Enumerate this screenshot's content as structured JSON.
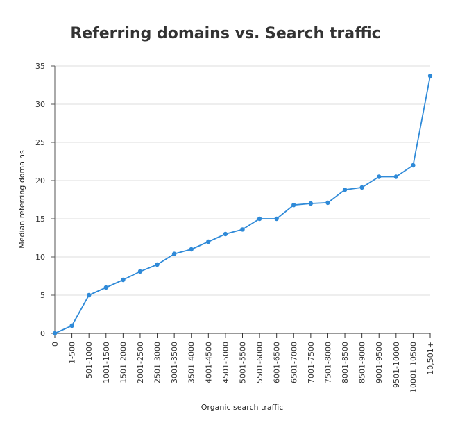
{
  "chart_data": {
    "type": "line",
    "title": "Referring domains vs. Search traffic",
    "xlabel": "Organic search traffic",
    "ylabel": "Median referring domains",
    "categories": [
      "0",
      "1-500",
      "501-1000",
      "1001-1500",
      "1501-2000",
      "2001-2500",
      "2501-3000",
      "3001-3500",
      "3501-4000",
      "4001-4500",
      "4501-5000",
      "5001-5500",
      "5501-6000",
      "6001-6500",
      "6501-7000",
      "7001-7500",
      "7501-8000",
      "8001-8500",
      "8501-9000",
      "9001-9500",
      "9501-10000",
      "10001-10500",
      "10,501+"
    ],
    "series": [
      {
        "values": [
          0,
          1,
          5,
          6,
          7,
          8.1,
          9,
          10.4,
          11,
          12,
          13,
          13.6,
          15,
          15,
          16.8,
          17,
          17.1,
          18.8,
          19.1,
          20.5,
          20.5,
          22,
          33.7
        ]
      }
    ],
    "ylim": [
      0,
      35
    ],
    "yticks": [
      0,
      5,
      10,
      15,
      20,
      25,
      30,
      35
    ],
    "grid": true,
    "color": "#2f8ad8"
  }
}
